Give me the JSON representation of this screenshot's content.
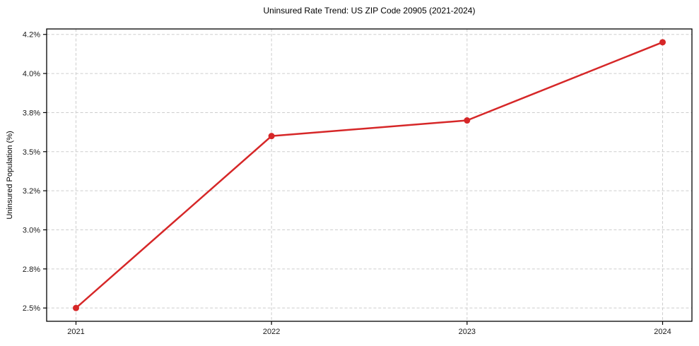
{
  "figure": {
    "background": "#ffffff"
  },
  "chart_data": {
    "type": "line",
    "title": "Uninsured Rate Trend: US ZIP Code 20905 (2021-2024)",
    "xlabel": "",
    "ylabel": "Uninsured Population (%)",
    "x": [
      2021,
      2022,
      2023,
      2024
    ],
    "x_tick_labels": [
      "2021",
      "2022",
      "2023",
      "2024"
    ],
    "series": [
      {
        "values": [
          2.5,
          3.6,
          3.7,
          4.2
        ]
      }
    ],
    "y_ticks": [
      2.5,
      2.75,
      3.0,
      3.25,
      3.5,
      3.75,
      4.0,
      4.25
    ],
    "y_tick_labels": [
      "2.5%",
      "2.8%",
      "3.0%",
      "3.2%",
      "3.5%",
      "3.8%",
      "4.0%",
      "4.2%"
    ],
    "xlim": [
      2020.85,
      2024.15
    ],
    "ylim": [
      2.415,
      4.285
    ],
    "grid": true,
    "legend_visible": false,
    "colors": {
      "line": "#d62728",
      "marker": "#d62728",
      "grid": "#cdcdcd",
      "spine": "#000000",
      "text": "#1a1a1a"
    }
  }
}
